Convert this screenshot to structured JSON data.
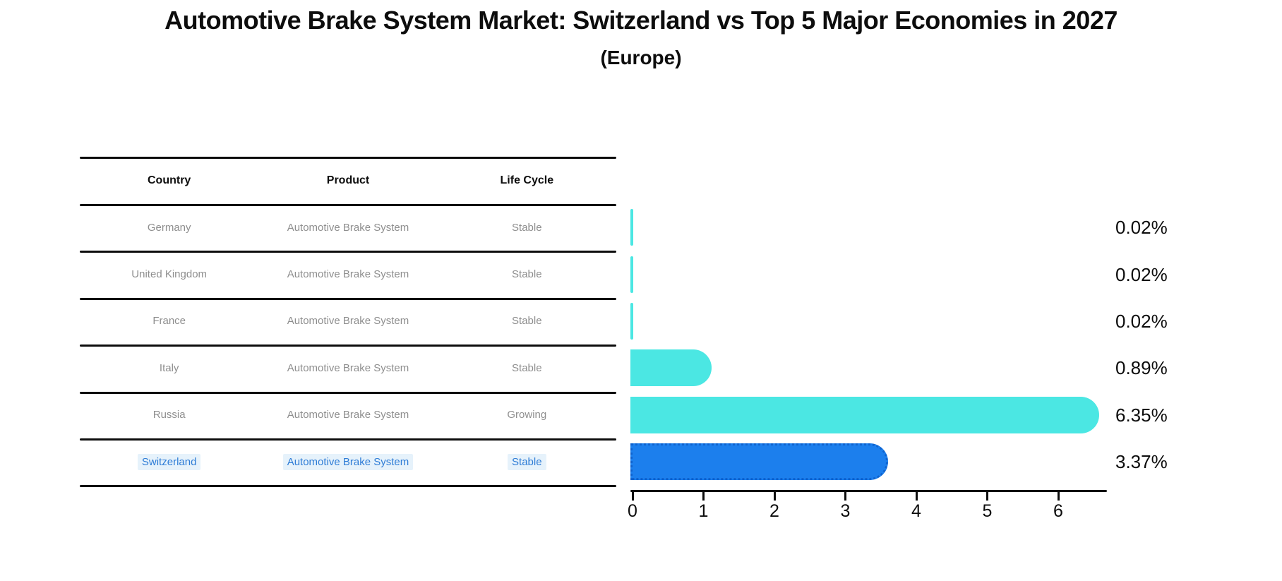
{
  "title": "Automotive Brake System Market: Switzerland vs Top 5 Major Economies in 2027",
  "subtitle": "(Europe)",
  "table": {
    "headers": [
      "Country",
      "Product",
      "Life Cycle"
    ],
    "rows": [
      {
        "country": "Germany",
        "product": "Automotive Brake System",
        "life_cycle": "Stable",
        "highlighted": false
      },
      {
        "country": "United Kingdom",
        "product": "Automotive Brake System",
        "life_cycle": "Stable",
        "highlighted": false
      },
      {
        "country": "France",
        "product": "Automotive Brake System",
        "life_cycle": "Stable",
        "highlighted": false
      },
      {
        "country": "Italy",
        "product": "Automotive Brake System",
        "life_cycle": "Stable",
        "highlighted": false
      },
      {
        "country": "Russia",
        "product": "Automotive Brake System",
        "life_cycle": "Growing",
        "highlighted": false
      },
      {
        "country": "Switzerland",
        "product": "Automotive Brake System",
        "life_cycle": "Stable",
        "highlighted": true
      }
    ]
  },
  "chart_data": {
    "type": "bar",
    "orientation": "horizontal",
    "title": "Automotive Brake System Market: Switzerland vs Top 5 Major Economies in 2027 (Europe)",
    "categories": [
      "Germany",
      "United Kingdom",
      "France",
      "Italy",
      "Russia",
      "Switzerland"
    ],
    "values": [
      0.02,
      0.02,
      0.02,
      0.89,
      6.35,
      3.37
    ],
    "value_labels": [
      "0.02%",
      "0.02%",
      "0.02%",
      "0.89%",
      "6.35%",
      "3.37%"
    ],
    "x_ticks": [
      "0",
      "1",
      "2",
      "3",
      "4",
      "5",
      "6"
    ],
    "xlim": [
      0,
      6.7
    ],
    "xlabel": "",
    "ylabel": "",
    "grid": false,
    "legend": false,
    "bar_color": "#4be7e3",
    "highlight_bar_color": "#1c7fed",
    "highlight_border_color": "#0f63cf",
    "highlight_index": 5
  },
  "colors": {
    "highlight_text": "#2e7cd6",
    "highlight_text_bg": "#e6f2fb",
    "table_text": "#8e8e8e",
    "line": "#0d0d0d"
  }
}
